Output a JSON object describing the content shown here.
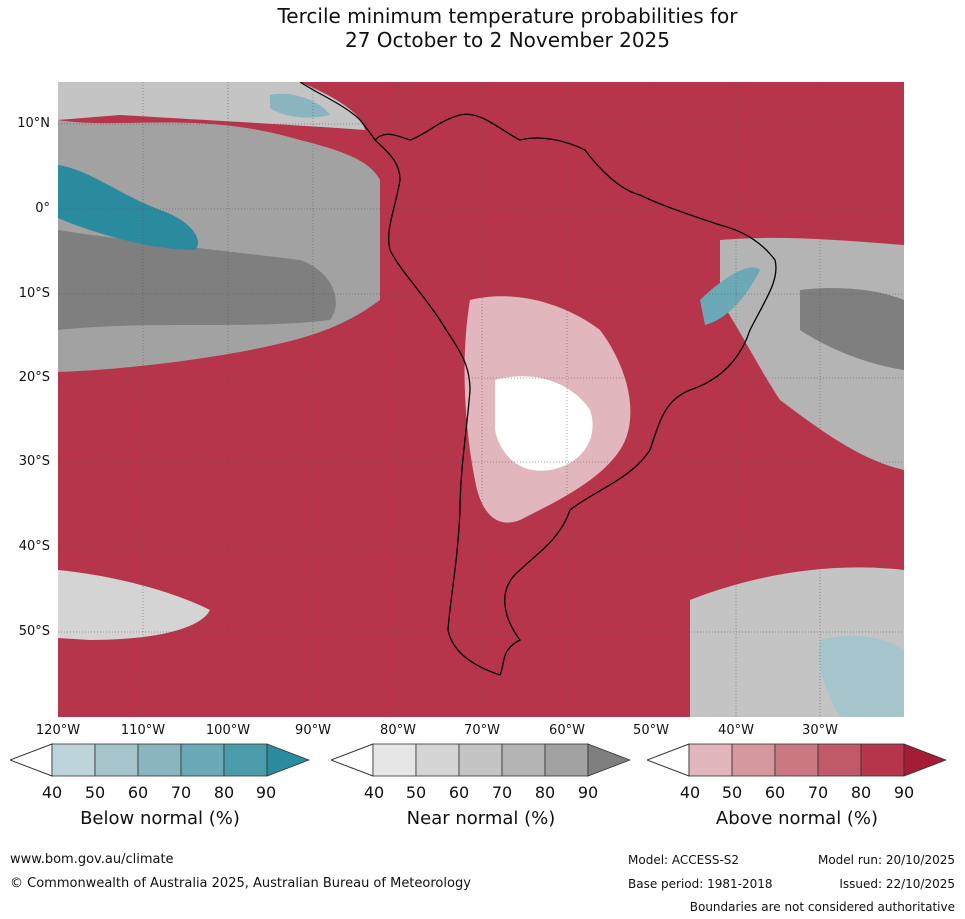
{
  "title": {
    "line1": "Tercile minimum temperature probabilities for",
    "line2": "27 October to 2 November 2025"
  },
  "map": {
    "lat_labels": [
      "10°N",
      "0°",
      "10°S",
      "20°S",
      "30°S",
      "40°S",
      "50°S"
    ],
    "lon_labels": [
      "120°W",
      "110°W",
      "100°W",
      "90°W",
      "80°W",
      "70°W",
      "60°W",
      "50°W",
      "40°W",
      "30°W"
    ]
  },
  "legends": [
    {
      "title": "Below normal (%)",
      "ticks": [
        "40",
        "50",
        "60",
        "70",
        "80",
        "90"
      ],
      "colors": [
        "#bdd4da",
        "#a5c4cc",
        "#8ab4c0",
        "#6aa9b5",
        "#4a9caa",
        "#2a8a9e"
      ]
    },
    {
      "title": "Near normal (%)",
      "ticks": [
        "40",
        "50",
        "60",
        "70",
        "80",
        "90"
      ],
      "colors": [
        "#e6e6e6",
        "#d4d4d4",
        "#c4c4c4",
        "#b4b4b4",
        "#a2a2a2",
        "#7f7f7f"
      ]
    },
    {
      "title": "Above normal (%)",
      "ticks": [
        "40",
        "50",
        "60",
        "70",
        "80",
        "90"
      ],
      "colors": [
        "#e2b6bd",
        "#d6989f",
        "#cb7882",
        "#c05a68",
        "#b7354a",
        "#a51c37"
      ]
    }
  ],
  "footer": {
    "url": "www.bom.gov.au/climate",
    "copyright": "© Commonwealth of Australia 2025, Australian Bureau of Meteorology",
    "model": "Model: ACCESS-S2",
    "base_period": "Base period: 1981-2018",
    "model_run": "Model run: 20/10/2025",
    "issued": "Issued: 22/10/2025",
    "disclaimer": "Boundaries are not considered authoritative"
  }
}
